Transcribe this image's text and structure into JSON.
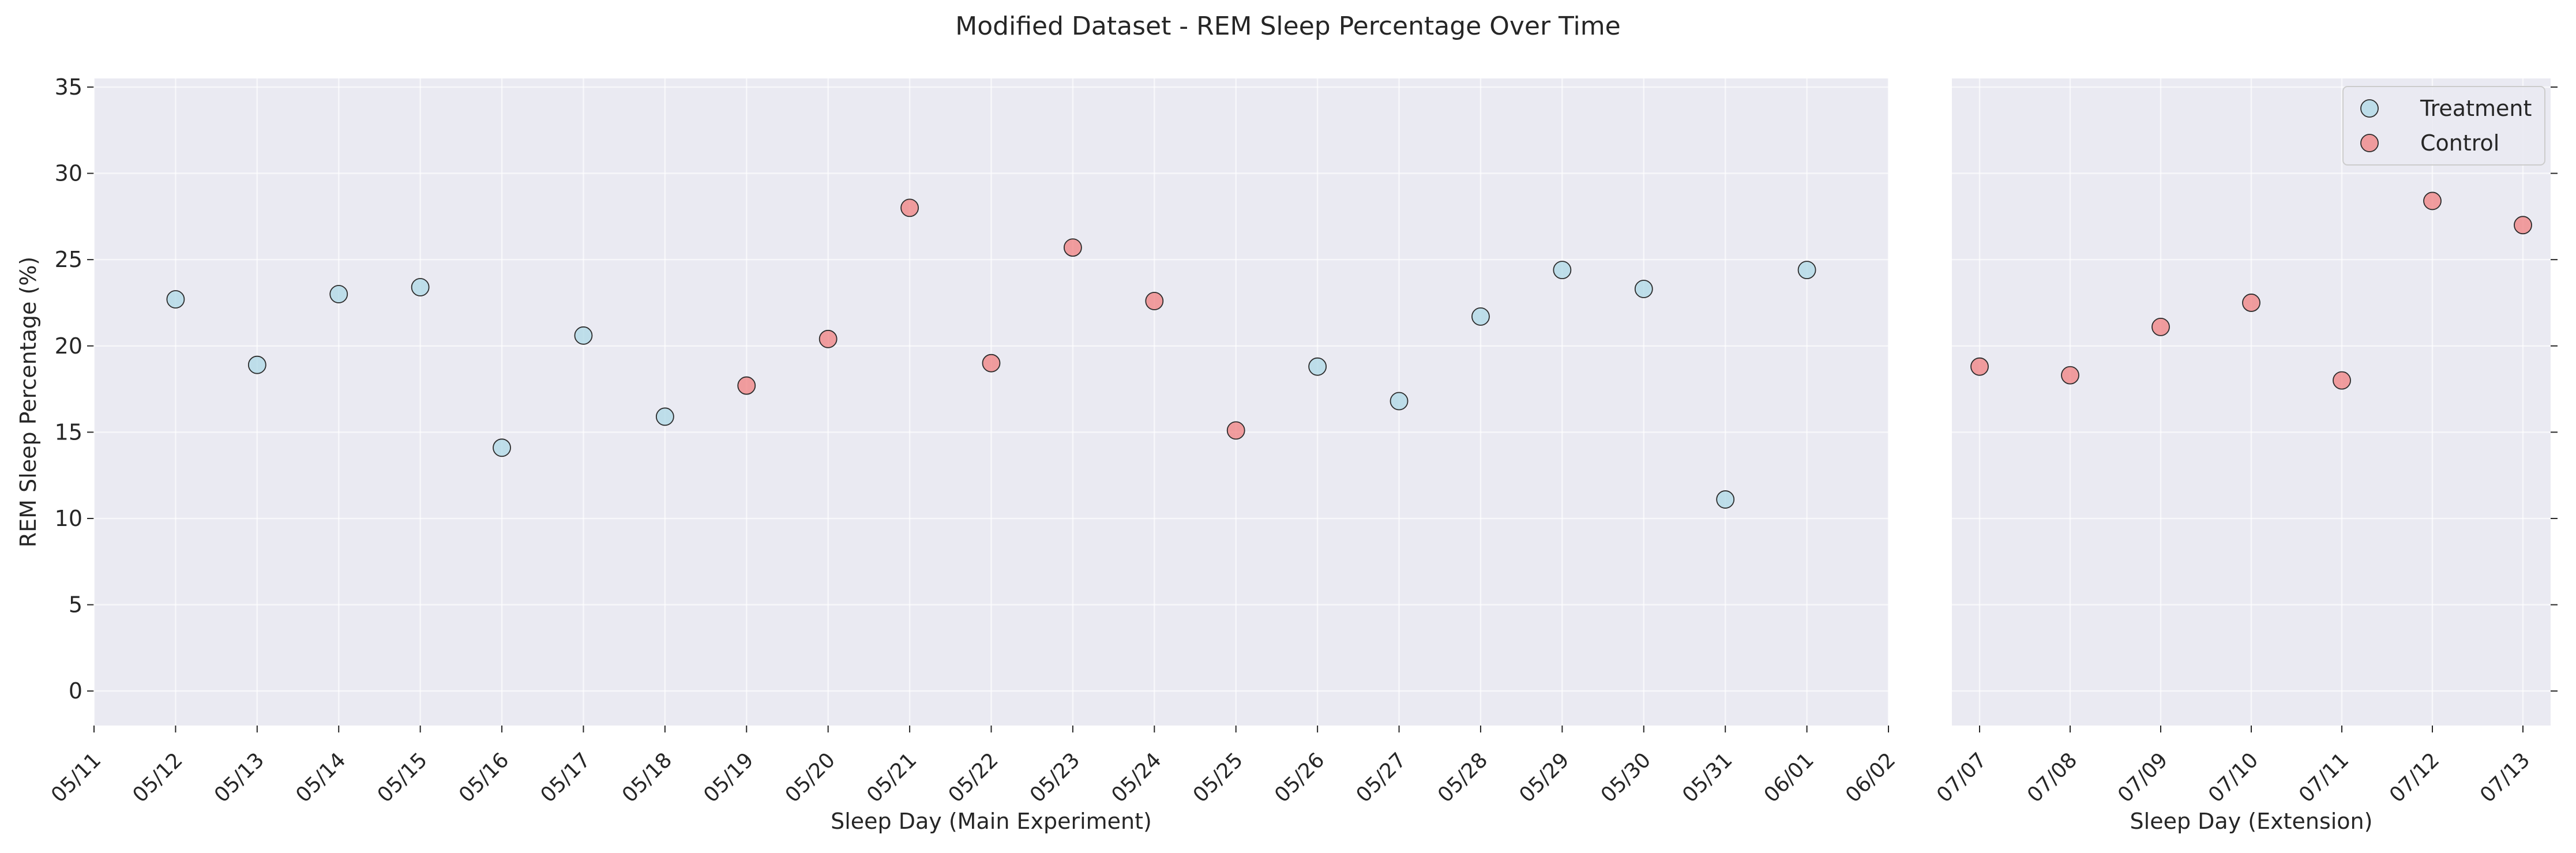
{
  "chart_data": {
    "type": "scatter",
    "title": "Modified Dataset - REM Sleep Percentage Over Time",
    "ylabel": "REM Sleep Percentage (%)",
    "ylim": [
      -2,
      35.5
    ],
    "yticks": [
      0,
      5,
      10,
      15,
      20,
      25,
      30,
      35
    ],
    "grid": true,
    "legend": {
      "placement": "top-right",
      "entries": [
        {
          "name": "Treatment",
          "color": "#add8e6"
        },
        {
          "name": "Control",
          "color": "#f08080"
        }
      ]
    },
    "panels": [
      {
        "xlabel": "Sleep Day (Main Experiment)",
        "xticks": [
          "05/11",
          "05/12",
          "05/13",
          "05/14",
          "05/15",
          "05/16",
          "05/17",
          "05/18",
          "05/19",
          "05/20",
          "05/21",
          "05/22",
          "05/23",
          "05/24",
          "05/25",
          "05/26",
          "05/27",
          "05/28",
          "05/29",
          "05/30",
          "05/31",
          "06/01",
          "06/02"
        ],
        "series": [
          {
            "name": "Treatment",
            "points": [
              {
                "x": "05/12",
                "y": 22.7
              },
              {
                "x": "05/13",
                "y": 18.9
              },
              {
                "x": "05/14",
                "y": 23.0
              },
              {
                "x": "05/15",
                "y": 23.4
              },
              {
                "x": "05/16",
                "y": 14.1
              },
              {
                "x": "05/17",
                "y": 20.6
              },
              {
                "x": "05/18",
                "y": 15.9
              },
              {
                "x": "05/26",
                "y": 18.8
              },
              {
                "x": "05/27",
                "y": 16.8
              },
              {
                "x": "05/28",
                "y": 21.7
              },
              {
                "x": "05/29",
                "y": 24.4
              },
              {
                "x": "05/30",
                "y": 23.3
              },
              {
                "x": "05/31",
                "y": 11.1
              },
              {
                "x": "06/01",
                "y": 24.4
              }
            ]
          },
          {
            "name": "Control",
            "points": [
              {
                "x": "05/19",
                "y": 17.7
              },
              {
                "x": "05/20",
                "y": 20.4
              },
              {
                "x": "05/21",
                "y": 28.0
              },
              {
                "x": "05/22",
                "y": 19.0
              },
              {
                "x": "05/23",
                "y": 25.7
              },
              {
                "x": "05/24",
                "y": 22.6
              },
              {
                "x": "05/25",
                "y": 15.1
              }
            ]
          }
        ]
      },
      {
        "xlabel": "Sleep Day (Extension)",
        "xticks": [
          "07/07",
          "07/08",
          "07/09",
          "07/10",
          "07/11",
          "07/12",
          "07/13"
        ],
        "series": [
          {
            "name": "Control",
            "points": [
              {
                "x": "07/07",
                "y": 18.8
              },
              {
                "x": "07/08",
                "y": 18.3
              },
              {
                "x": "07/09",
                "y": 21.1
              },
              {
                "x": "07/10",
                "y": 22.5
              },
              {
                "x": "07/11",
                "y": 18.0
              },
              {
                "x": "07/12",
                "y": 28.4
              },
              {
                "x": "07/13",
                "y": 27.0
              }
            ]
          }
        ]
      }
    ]
  }
}
